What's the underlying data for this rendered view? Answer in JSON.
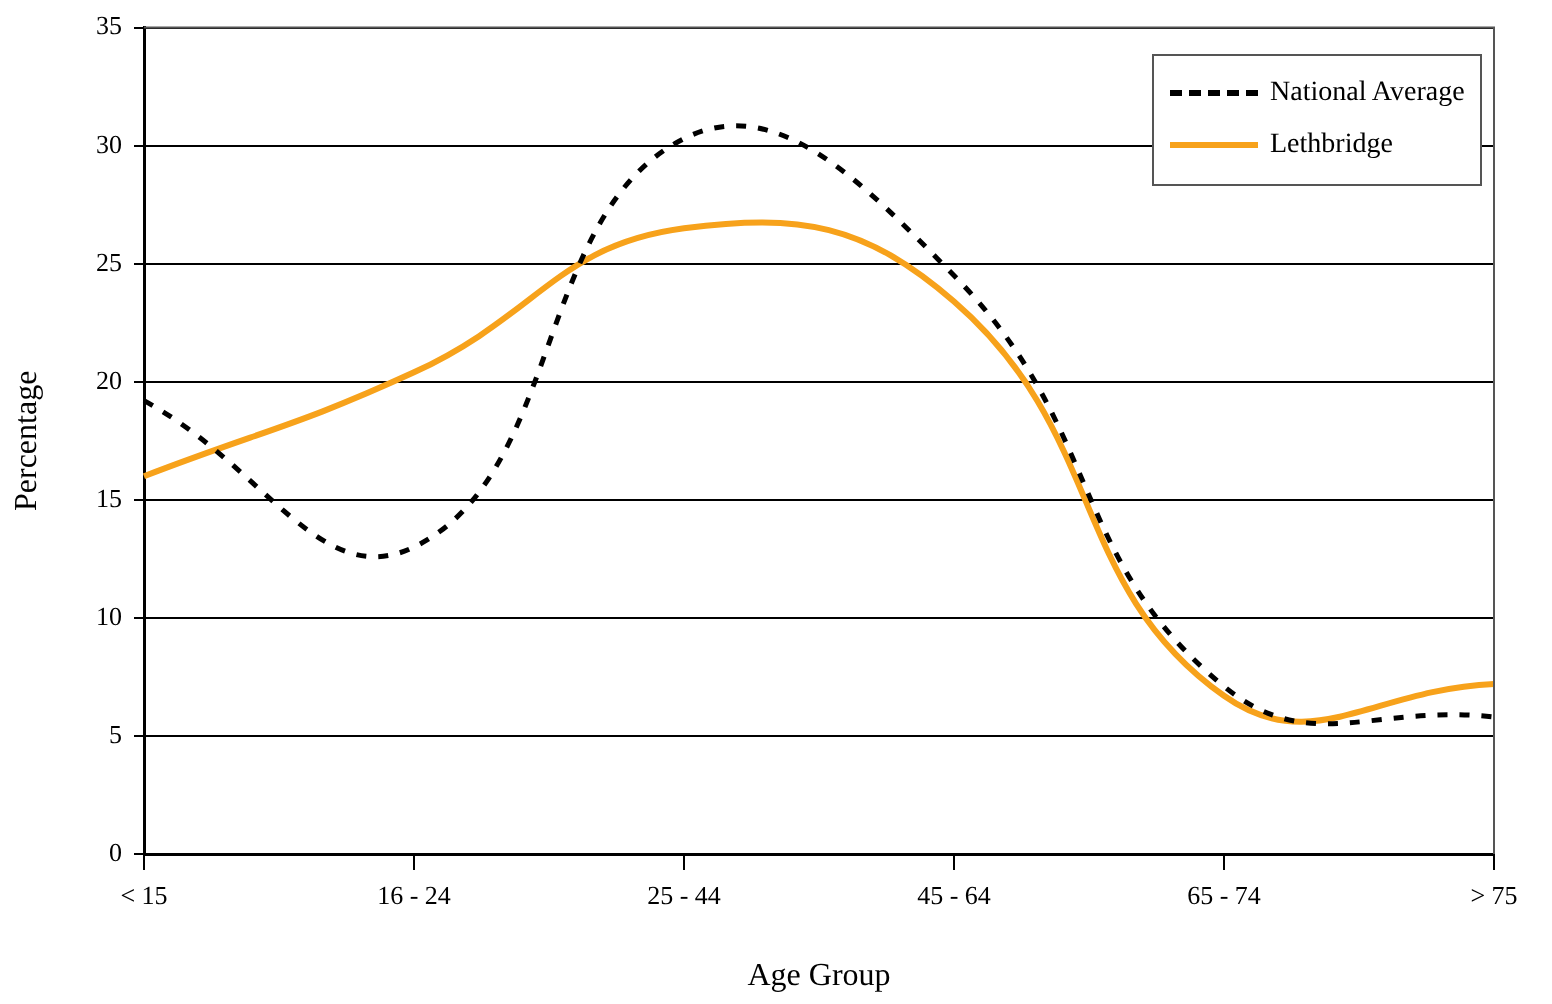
{
  "chart_data": {
    "type": "line",
    "xlabel": "Age Group",
    "ylabel": "Percentage",
    "categories": [
      "< 15",
      "16 - 24",
      "25 - 44",
      "45 - 64",
      "65 - 74",
      "> 75"
    ],
    "series": [
      {
        "name": "National Average",
        "color": "#000000",
        "line_style": "dashed",
        "values": [
          19.2,
          13.0,
          30.3,
          24.5,
          7.1,
          5.8
        ]
      },
      {
        "name": "Lethbridge",
        "color": "#f7a21b",
        "line_style": "solid",
        "values": [
          16.0,
          20.4,
          26.5,
          23.4,
          6.7,
          7.2
        ]
      }
    ],
    "ylim": [
      0,
      35
    ],
    "yticks": [
      0,
      5,
      10,
      15,
      20,
      25,
      30,
      35
    ],
    "grid": "y",
    "legend": "top right",
    "marker": "none"
  }
}
